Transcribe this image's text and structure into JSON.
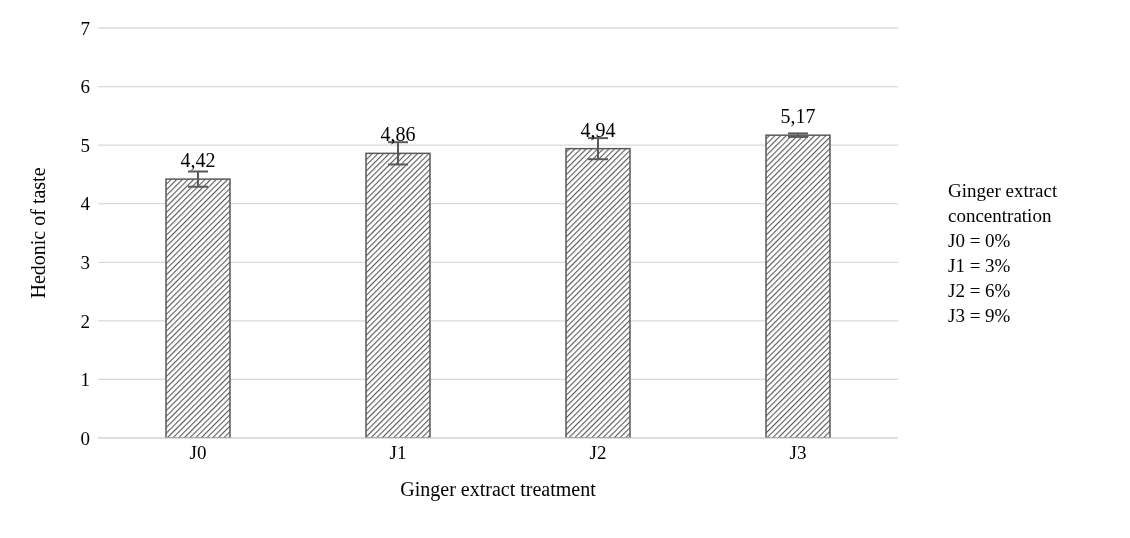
{
  "chart_data": {
    "type": "bar",
    "xlabel": "Ginger extract treatment",
    "ylabel": "Hedonic of taste",
    "categories": [
      "J0",
      "J1",
      "J2",
      "J3"
    ],
    "values": [
      4.42,
      4.86,
      4.94,
      5.17
    ],
    "errors": [
      0.13,
      0.19,
      0.18,
      0.03
    ],
    "value_labels": [
      "4,42",
      "4,86",
      "4,94",
      "5,17"
    ],
    "color": "#595959",
    "ylim": [
      0,
      7
    ],
    "yticks": [
      0,
      1,
      2,
      3,
      4,
      5,
      6,
      7
    ],
    "grid": "y",
    "annotations": [
      "Ginger extract concentration",
      "J0 = 0%",
      "J1 = 3%",
      "J2 = 6%",
      "J3 = 9%"
    ]
  }
}
